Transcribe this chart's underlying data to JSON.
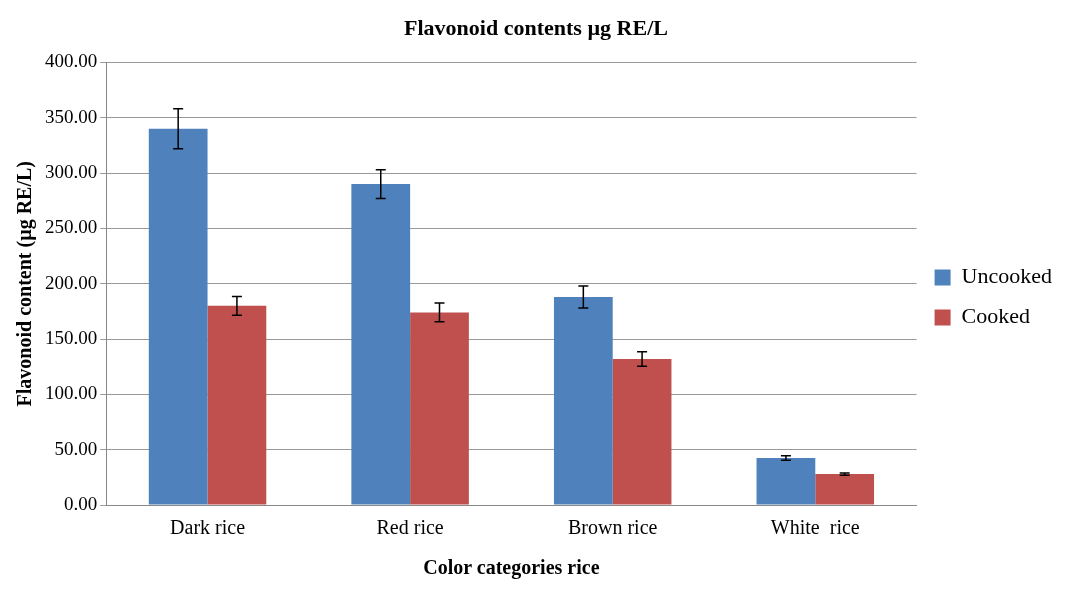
{
  "chart_data": {
    "type": "bar",
    "title": "Flavonoid contents µg RE/L",
    "xlabel": "Color categories rice",
    "ylabel": "Flavonoid content (µg RE/L)",
    "categories": [
      "Dark rice",
      "Red rice",
      "Brown rice",
      "White  rice"
    ],
    "series": [
      {
        "name": "Uncooked",
        "color": "#4f81bd",
        "values": [
          340,
          290,
          188,
          42.5
        ],
        "errors": [
          18,
          13,
          10,
          2
        ]
      },
      {
        "name": "Cooked",
        "color": "#c0504d",
        "values": [
          180,
          174,
          132,
          28
        ],
        "errors": [
          8.5,
          8.5,
          6.5,
          1
        ]
      }
    ],
    "ylim": [
      0,
      400
    ],
    "yticks": [
      {
        "value": 0,
        "label": "0.00"
      },
      {
        "value": 50,
        "label": "50.00"
      },
      {
        "value": 100,
        "label": "100.00"
      },
      {
        "value": 150,
        "label": "150.00"
      },
      {
        "value": 200,
        "label": "200.00"
      },
      {
        "value": 250,
        "label": "250.00"
      },
      {
        "value": 300,
        "label": "300.00"
      },
      {
        "value": 350,
        "label": "350.00"
      },
      {
        "value": 400,
        "label": "400.00"
      }
    ],
    "grid": "y",
    "legend": "right"
  }
}
